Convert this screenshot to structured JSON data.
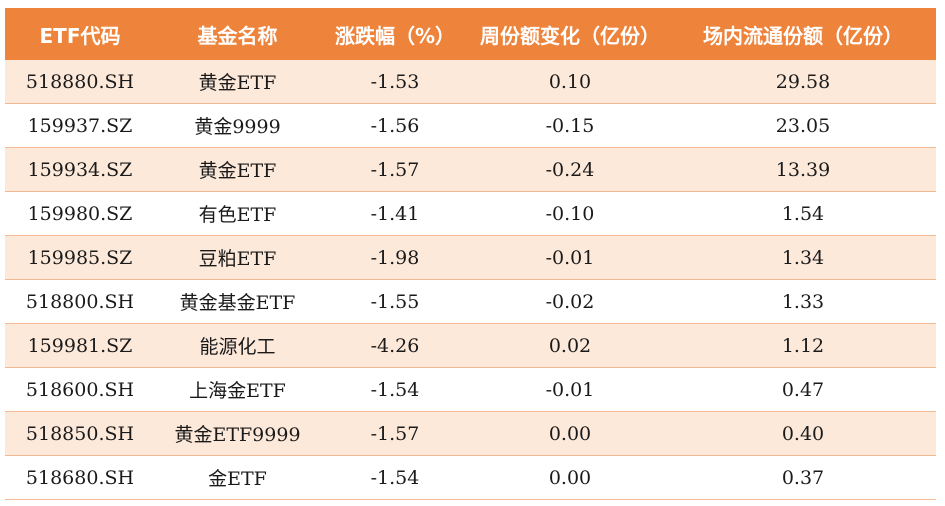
{
  "table": {
    "headers": [
      "ETF代码",
      "基金名称",
      "涨跌幅（%）",
      "周份额变化（亿份）",
      "场内流通份额（亿份）"
    ],
    "rows": [
      [
        "518880.SH",
        "黄金ETF",
        "-1.53",
        "0.10",
        "29.58"
      ],
      [
        "159937.SZ",
        "黄金9999",
        "-1.56",
        "-0.15",
        "23.05"
      ],
      [
        "159934.SZ",
        "黄金ETF",
        "-1.57",
        "-0.24",
        "13.39"
      ],
      [
        "159980.SZ",
        "有色ETF",
        "-1.41",
        "-0.10",
        "1.54"
      ],
      [
        "159985.SZ",
        "豆粕ETF",
        "-1.98",
        "-0.01",
        "1.34"
      ],
      [
        "518800.SH",
        "黄金基金ETF",
        "-1.55",
        "-0.02",
        "1.33"
      ],
      [
        "159981.SZ",
        "能源化工",
        "-4.26",
        "0.02",
        "1.12"
      ],
      [
        "518600.SH",
        "上海金ETF",
        "-1.54",
        "-0.01",
        "0.47"
      ],
      [
        "518850.SH",
        "黄金ETF9999",
        "-1.57",
        "0.00",
        "0.40"
      ],
      [
        "518680.SH",
        "金ETF",
        "-1.54",
        "0.00",
        "0.37"
      ]
    ]
  },
  "colors": {
    "header_bg": "#ee843b",
    "header_text": "#ffffff",
    "row_odd_bg": "#fde9da",
    "row_even_bg": "#ffffff",
    "row_border": "#f3b993"
  }
}
